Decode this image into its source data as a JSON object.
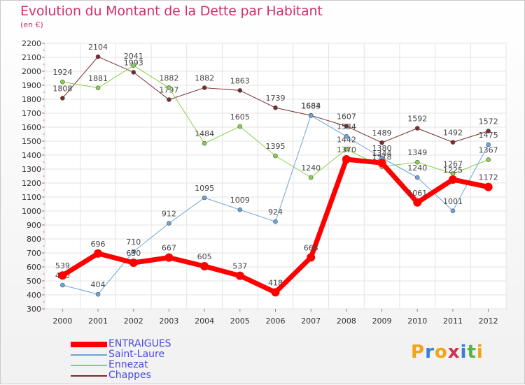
{
  "title": "Evolution du Montant de la Dette par Habitant",
  "subtitle": "(en €)",
  "logo": {
    "letters": [
      "P",
      "r",
      "o",
      "x",
      "i",
      "t",
      "i"
    ],
    "colors": [
      "#f3a317",
      "#3a7fd0",
      "#f3a317",
      "#d03050",
      "#3a7fd0",
      "#57b43f",
      "#f3a317"
    ]
  },
  "chart_data": {
    "type": "line",
    "x": [
      "2000",
      "2001",
      "2002",
      "2003",
      "2004",
      "2005",
      "2006",
      "2007",
      "2008",
      "2009",
      "2010",
      "2011",
      "2012"
    ],
    "ylim": [
      300,
      2200
    ],
    "yticks": [
      300,
      400,
      500,
      600,
      700,
      800,
      900,
      1000,
      1100,
      1200,
      1300,
      1400,
      1500,
      1600,
      1700,
      1800,
      1900,
      2000,
      2100,
      2200
    ],
    "grid": true,
    "legend_position": "bottom-left",
    "series": [
      {
        "name": "Chappes",
        "color": "#7a2a2a",
        "width": 1,
        "values": [
          1808,
          2104,
          1993,
          1797,
          1882,
          1863,
          1739,
          1684,
          1607,
          1489,
          1592,
          1492,
          1572
        ]
      },
      {
        "name": "Ennezat",
        "color": "#8ad04a",
        "width": 1,
        "values": [
          1924,
          1881,
          2041,
          1882,
          1484,
          1605,
          1395,
          1240,
          1442,
          1318,
          1349,
          1267,
          1367
        ]
      },
      {
        "name": "Saint-Laure",
        "color": "#6aa4d8",
        "width": 1,
        "values": [
          470,
          404,
          710,
          912,
          1095,
          1009,
          924,
          1683,
          1534,
          1380,
          1240,
          1001,
          1475
        ]
      },
      {
        "name": "ENTRAIGUES",
        "color": "#ff0000",
        "width": 7,
        "values": [
          539,
          696,
          630,
          667,
          605,
          537,
          418,
          668,
          1370,
          1344,
          1061,
          1225,
          1172
        ]
      }
    ]
  }
}
